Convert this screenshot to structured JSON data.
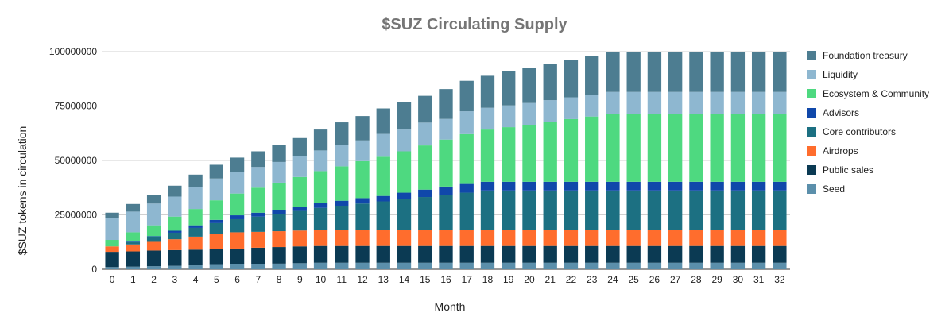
{
  "chart_data": {
    "type": "bar",
    "stacked": true,
    "title": "$SUZ Circulating Supply",
    "xlabel": "Month",
    "ylabel": "$SUZ tokens in circulation",
    "ylim": [
      0,
      100000000
    ],
    "yticks": [
      "0",
      "25000000",
      "50000000",
      "75000000",
      "100000000"
    ],
    "grid": true,
    "legend_position": "right",
    "categories": [
      "0",
      "1",
      "2",
      "3",
      "4",
      "5",
      "6",
      "7",
      "8",
      "9",
      "10",
      "11",
      "12",
      "13",
      "14",
      "15",
      "16",
      "17",
      "18",
      "19",
      "20",
      "21",
      "22",
      "23",
      "24",
      "25",
      "26",
      "27",
      "28",
      "29",
      "30",
      "31",
      "32"
    ],
    "series": [
      {
        "name": "Seed",
        "color": "#5b8fab",
        "values": [
          1000000,
          1200000,
          1400000,
          1600000,
          1800000,
          2000000,
          2200000,
          2400000,
          2600000,
          2800000,
          3000000,
          3000000,
          3000000,
          3000000,
          3000000,
          3000000,
          3000000,
          3000000,
          3000000,
          3000000,
          3000000,
          3000000,
          3000000,
          3000000,
          3000000,
          3000000,
          3000000,
          3000000,
          3000000,
          3000000,
          3000000,
          3000000,
          3000000
        ]
      },
      {
        "name": "Public sales",
        "color": "#0b3a53",
        "values": [
          7000000,
          7000000,
          7200000,
          7200000,
          7200000,
          7200000,
          7300000,
          7500000,
          7600000,
          7700000,
          7700000,
          7700000,
          7700000,
          7700000,
          7700000,
          7700000,
          7700000,
          7700000,
          7700000,
          7700000,
          7700000,
          7700000,
          7700000,
          7700000,
          7700000,
          7700000,
          7700000,
          7700000,
          7700000,
          7700000,
          7700000,
          7700000,
          7700000
        ]
      },
      {
        "name": "Airdrops",
        "color": "#ff6d2d",
        "values": [
          2500000,
          3200000,
          4000000,
          5000000,
          6000000,
          7000000,
          7500000,
          7300000,
          7300000,
          7300000,
          7500000,
          7500000,
          7500000,
          7500000,
          7500000,
          7500000,
          7500000,
          7500000,
          7500000,
          7500000,
          7500000,
          7500000,
          7500000,
          7500000,
          7500000,
          7500000,
          7500000,
          7500000,
          7500000,
          7500000,
          7500000,
          7500000,
          7500000
        ]
      },
      {
        "name": "Core contributors",
        "color": "#1c7082",
        "values": [
          0,
          1000000,
          2000000,
          3000000,
          4000000,
          5000000,
          6000000,
          7000000,
          8000000,
          9000000,
          10000000,
          11000000,
          12000000,
          13000000,
          14000000,
          15000000,
          16000000,
          17000000,
          18000000,
          18000000,
          18000000,
          18000000,
          18000000,
          18000000,
          18000000,
          18000000,
          18000000,
          18000000,
          18000000,
          18000000,
          18000000,
          18000000,
          18000000
        ]
      },
      {
        "name": "Advisors",
        "color": "#1048aa",
        "values": [
          0,
          300000,
          600000,
          900000,
          1200000,
          1500000,
          1800000,
          1800000,
          1800000,
          2000000,
          2200000,
          2300000,
          2500000,
          2500000,
          3000000,
          3400000,
          3800000,
          4000000,
          4000000,
          4000000,
          4000000,
          4000000,
          4000000,
          4000000,
          4000000,
          4000000,
          4000000,
          4000000,
          4000000,
          4000000,
          4000000,
          4000000,
          4000000
        ]
      },
      {
        "name": "Ecosystem & Community",
        "color": "#4ed980",
        "values": [
          3000000,
          4300000,
          5000000,
          6500000,
          7500000,
          9000000,
          10000000,
          11500000,
          12500000,
          13600000,
          14700000,
          15800000,
          17000000,
          18000000,
          19000000,
          20300000,
          21600000,
          22900000,
          24000000,
          25100000,
          26200000,
          27500000,
          28800000,
          30000000,
          31300000,
          31300000,
          31300000,
          31300000,
          31300000,
          31300000,
          31300000,
          31300000,
          31300000
        ]
      },
      {
        "name": "Liquidity",
        "color": "#8eb7d0",
        "values": [
          10000000,
          9500000,
          10000000,
          9200000,
          10200000,
          10000000,
          9800000,
          9500000,
          9500000,
          9500000,
          9500000,
          10000000,
          9500000,
          10500000,
          10000000,
          10500000,
          9500000,
          10500000,
          10000000,
          10000000,
          10000000,
          10000000,
          10000000,
          10000000,
          10000000,
          10000000,
          10000000,
          10000000,
          10000000,
          10000000,
          10000000,
          10000000,
          10000000
        ]
      },
      {
        "name": "Foundation treasury",
        "color": "#4d7d91",
        "values": [
          2500000,
          3500000,
          3800000,
          5000000,
          5600000,
          6300000,
          6700000,
          7200000,
          7900000,
          8400000,
          9600000,
          10200000,
          11200000,
          11700000,
          12500000,
          12300000,
          13700000,
          14000000,
          14700000,
          15800000,
          16200000,
          16800000,
          17200000,
          17800000,
          18200000,
          18200000,
          18200000,
          18200000,
          18200000,
          18200000,
          18200000,
          18200000,
          18200000
        ]
      }
    ]
  }
}
